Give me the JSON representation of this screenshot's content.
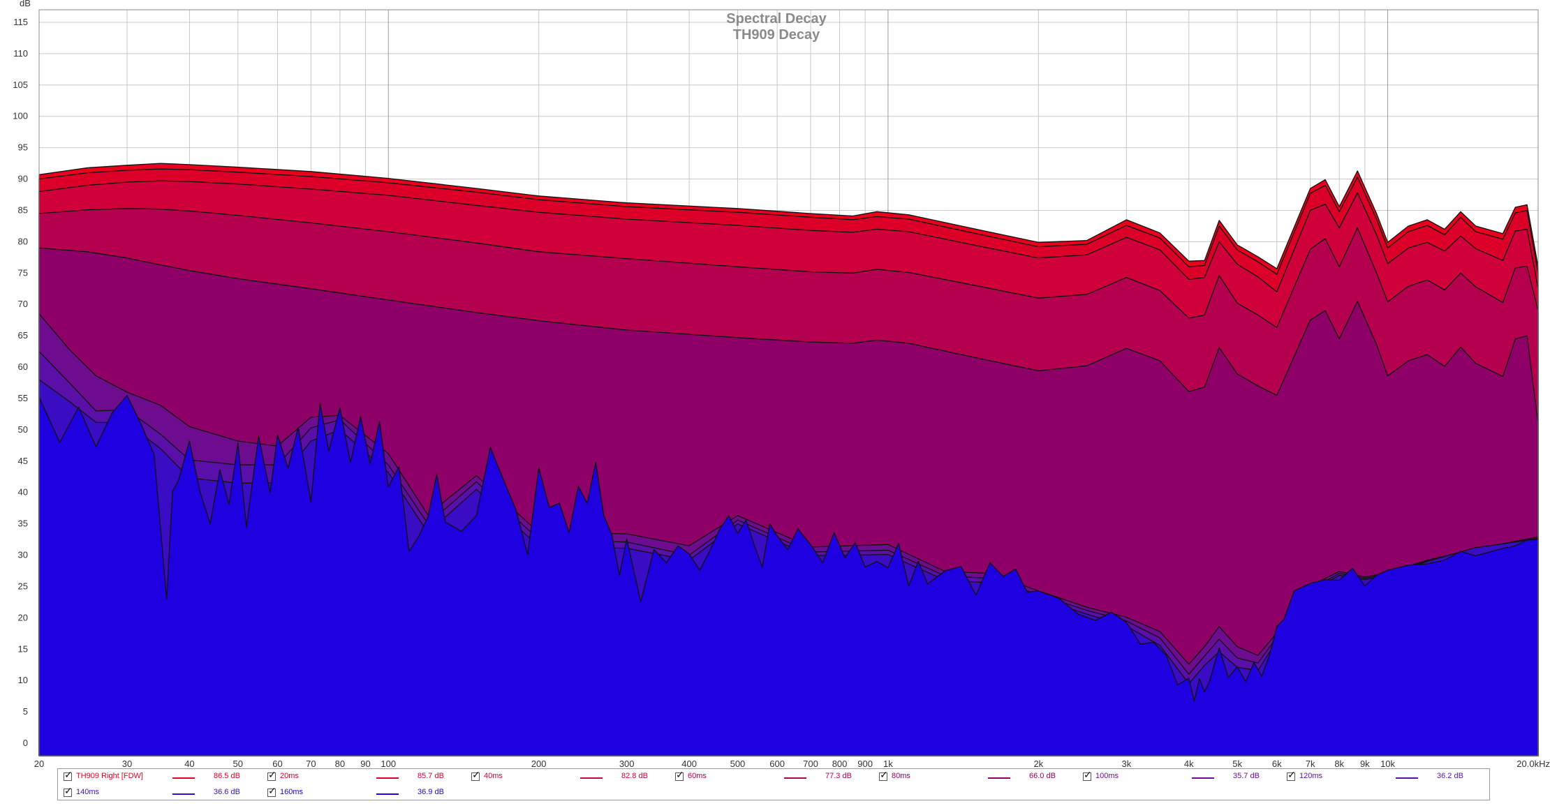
{
  "chart_data": {
    "type": "area",
    "title": "Spectral Decay",
    "subtitle": "TH909 Decay",
    "ylabel": "dB",
    "xlabel": "",
    "x_scale": "log",
    "xlim": [
      20,
      20000
    ],
    "ylim": [
      -2,
      117
    ],
    "yticks": [
      0,
      5,
      10,
      15,
      20,
      25,
      30,
      35,
      40,
      45,
      50,
      55,
      60,
      65,
      70,
      75,
      80,
      85,
      90,
      95,
      100,
      105,
      110,
      115
    ],
    "xticks": [
      {
        "v": 20,
        "label": "20"
      },
      {
        "v": 30,
        "label": "30"
      },
      {
        "v": 40,
        "label": "40"
      },
      {
        "v": 50,
        "label": "50"
      },
      {
        "v": 60,
        "label": "60"
      },
      {
        "v": 70,
        "label": "70"
      },
      {
        "v": 80,
        "label": "80"
      },
      {
        "v": 90,
        "label": "90"
      },
      {
        "v": 100,
        "label": "100"
      },
      {
        "v": 200,
        "label": "200"
      },
      {
        "v": 300,
        "label": "300"
      },
      {
        "v": 400,
        "label": "400"
      },
      {
        "v": 500,
        "label": "500"
      },
      {
        "v": 600,
        "label": "600"
      },
      {
        "v": 700,
        "label": "700"
      },
      {
        "v": 800,
        "label": "800"
      },
      {
        "v": 900,
        "label": "900"
      },
      {
        "v": 1000,
        "label": "1k"
      },
      {
        "v": 2000,
        "label": "2k"
      },
      {
        "v": 3000,
        "label": "3k"
      },
      {
        "v": 4000,
        "label": "4k"
      },
      {
        "v": 5000,
        "label": "5k"
      },
      {
        "v": 6000,
        "label": "6k"
      },
      {
        "v": 7000,
        "label": "7k"
      },
      {
        "v": 8000,
        "label": "8k"
      },
      {
        "v": 9000,
        "label": "9k"
      },
      {
        "v": 10000,
        "label": "10k"
      },
      {
        "v": 20000,
        "label": "20.0kHz"
      }
    ],
    "grid": true,
    "legend_position": "bottom",
    "series": [
      {
        "name": "TH909 Right [FDW]",
        "legend_value": "86.5 dB",
        "color": "#e8001c",
        "x": [
          20,
          25,
          30,
          35,
          40,
          50,
          70,
          100,
          150,
          200,
          300,
          500,
          700,
          850,
          950,
          1100,
          1500,
          2000,
          2500,
          3000,
          3500,
          4000,
          4300,
          4600,
          5000,
          5500,
          6000,
          7000,
          7500,
          8000,
          8700,
          9500,
          10000,
          11000,
          12000,
          13000,
          14000,
          15000,
          17000,
          18000,
          19000,
          20000
        ],
        "y": [
          90.7,
          91.8,
          92.2,
          92.5,
          92.3,
          91.9,
          91.2,
          90.1,
          88.5,
          87.3,
          86.2,
          85.3,
          84.5,
          84.1,
          84.8,
          84.3,
          82.0,
          79.9,
          80.2,
          83.5,
          81.4,
          76.9,
          77.0,
          83.4,
          79.5,
          77.6,
          75.7,
          88.5,
          89.9,
          85.6,
          91.3,
          84.5,
          79.9,
          82.5,
          83.5,
          82.0,
          84.8,
          82.5,
          81.3,
          85.5,
          85.9,
          76.0
        ]
      },
      {
        "name": "20ms",
        "legend_value": "85.7 dB",
        "color": "#dc0028",
        "x": [
          20,
          25,
          30,
          35,
          40,
          50,
          70,
          100,
          150,
          200,
          300,
          500,
          700,
          850,
          950,
          1100,
          1500,
          2000,
          2500,
          3000,
          3500,
          4000,
          4300,
          4600,
          5000,
          5500,
          6000,
          7000,
          7500,
          8000,
          8700,
          9500,
          10000,
          11000,
          12000,
          13000,
          14000,
          15000,
          17000,
          18000,
          19000,
          20000
        ],
        "y": [
          90.0,
          91.0,
          91.4,
          91.6,
          91.5,
          91.1,
          90.4,
          89.4,
          87.9,
          86.7,
          85.6,
          84.7,
          83.9,
          83.5,
          84.0,
          83.6,
          81.3,
          79.2,
          79.6,
          82.6,
          80.6,
          76.0,
          76.2,
          82.5,
          78.7,
          76.8,
          74.8,
          87.7,
          89.0,
          84.8,
          90.3,
          83.6,
          79.0,
          81.6,
          82.6,
          81.1,
          83.9,
          81.6,
          80.4,
          84.6,
          85.0,
          75.0
        ]
      },
      {
        "name": "40ms",
        "legend_value": "82.8 dB",
        "color": "#d0003a",
        "x": [
          20,
          25,
          30,
          35,
          40,
          50,
          70,
          100,
          150,
          200,
          300,
          500,
          700,
          850,
          950,
          1100,
          1500,
          2000,
          2500,
          3000,
          3500,
          4000,
          4300,
          4600,
          5000,
          5500,
          6000,
          7000,
          7500,
          8000,
          8700,
          9500,
          10000,
          11000,
          12000,
          13000,
          14000,
          15000,
          17000,
          18000,
          19000,
          20000
        ],
        "y": [
          88.0,
          89.0,
          89.5,
          89.7,
          89.6,
          89.2,
          88.4,
          87.4,
          85.8,
          84.7,
          83.6,
          82.6,
          81.8,
          81.5,
          82.0,
          81.6,
          79.4,
          77.4,
          77.9,
          80.7,
          78.7,
          74.0,
          74.3,
          80.0,
          76.4,
          74.4,
          72.0,
          85.0,
          86.0,
          82.2,
          87.8,
          81.1,
          76.5,
          79.0,
          79.9,
          78.5,
          80.9,
          78.9,
          77.0,
          81.7,
          82.0,
          72.5
        ]
      },
      {
        "name": "60ms",
        "legend_value": "77.3 dB",
        "color": "#b4004e",
        "x": [
          20,
          25,
          30,
          35,
          40,
          50,
          70,
          100,
          150,
          200,
          300,
          500,
          700,
          850,
          950,
          1100,
          1500,
          2000,
          2500,
          3000,
          3500,
          4000,
          4300,
          4600,
          5000,
          5500,
          6000,
          7000,
          7500,
          8000,
          8700,
          9500,
          10000,
          11000,
          12000,
          13000,
          14000,
          15000,
          17000,
          18000,
          19000,
          20000
        ],
        "y": [
          84.5,
          85.1,
          85.3,
          85.2,
          84.9,
          84.2,
          83.0,
          81.6,
          79.8,
          78.4,
          77.3,
          76.0,
          75.2,
          75.0,
          75.6,
          75.1,
          73.0,
          71.0,
          71.6,
          74.3,
          72.2,
          67.8,
          68.3,
          74.6,
          70.2,
          68.3,
          66.3,
          78.8,
          80.5,
          76.0,
          82.2,
          75.0,
          70.4,
          72.9,
          73.9,
          72.3,
          75.0,
          72.8,
          70.3,
          75.8,
          76.1,
          69.0
        ]
      },
      {
        "name": "80ms",
        "legend_value": "66.0 dB",
        "color": "#8e0068",
        "x": [
          20,
          25,
          30,
          35,
          40,
          50,
          70,
          100,
          150,
          200,
          300,
          500,
          700,
          850,
          950,
          1100,
          1500,
          2000,
          2500,
          3000,
          3500,
          4000,
          4300,
          4600,
          5000,
          5500,
          6000,
          7000,
          7500,
          8000,
          8700,
          9500,
          10000,
          11000,
          12000,
          13000,
          14000,
          15000,
          17000,
          18000,
          19000,
          20000
        ],
        "y": [
          79.0,
          78.4,
          77.4,
          76.3,
          75.4,
          74.1,
          72.5,
          70.7,
          68.7,
          67.4,
          65.9,
          64.7,
          64.0,
          63.8,
          64.3,
          63.8,
          61.5,
          59.4,
          60.2,
          63.0,
          61.0,
          56.1,
          56.8,
          63.1,
          58.9,
          57.0,
          55.5,
          67.5,
          69.0,
          64.5,
          70.5,
          63.6,
          58.6,
          61.0,
          62.0,
          60.1,
          63.2,
          60.6,
          58.5,
          64.5,
          65.0,
          51.0
        ]
      },
      {
        "name": "100ms",
        "legend_value": "35.7 dB",
        "color": "#6e0c90",
        "x": [
          20,
          23,
          26,
          30,
          35,
          40,
          50,
          60,
          70,
          80,
          100,
          120,
          150,
          200,
          300,
          400,
          500,
          700,
          1000,
          1300,
          1600,
          2000,
          2500,
          3000,
          3500,
          4000,
          4300,
          4600,
          5000,
          5500,
          6000,
          7000,
          8000,
          9000,
          10000,
          12000,
          15000,
          20000
        ],
        "y": [
          68.5,
          62.8,
          58.6,
          56.0,
          53.9,
          50.5,
          48.2,
          47.4,
          52.0,
          52.3,
          46.2,
          36.4,
          42.7,
          33.6,
          33.4,
          31.5,
          36.3,
          31.3,
          31.7,
          27.4,
          27.1,
          24.3,
          21.7,
          20.1,
          17.8,
          12.6,
          15.4,
          18.6,
          15.4,
          14.0,
          17.6,
          25.1,
          27.4,
          26.5,
          27.2,
          29.2,
          31.0,
          32.9
        ]
      },
      {
        "name": "120ms",
        "legend_value": "36.2 dB",
        "color": "#5a10a8",
        "x": [
          20,
          23,
          26,
          30,
          35,
          40,
          50,
          60,
          70,
          80,
          100,
          120,
          150,
          200,
          300,
          400,
          500,
          700,
          1000,
          1300,
          1600,
          2000,
          2500,
          3000,
          3500,
          4000,
          4300,
          4600,
          5000,
          5500,
          6000,
          7000,
          8000,
          9000,
          10000,
          12000,
          15000,
          20000
        ],
        "y": [
          62.5,
          57.5,
          53.0,
          53.2,
          49.3,
          45.2,
          44.4,
          44.4,
          50.3,
          51.6,
          44.4,
          35.0,
          41.7,
          32.5,
          32.1,
          30.0,
          35.6,
          30.5,
          30.8,
          26.7,
          26.3,
          23.7,
          21.2,
          19.5,
          16.8,
          11.0,
          13.9,
          16.6,
          13.6,
          12.8,
          16.9,
          24.5,
          27.1,
          26.3,
          27.0,
          29.1,
          31.1,
          32.7
        ]
      },
      {
        "name": "140ms",
        "legend_value": "36.6 dB",
        "color": "#3a0cc4",
        "x": [
          20,
          23,
          26,
          30,
          35,
          40,
          50,
          60,
          70,
          80,
          100,
          120,
          150,
          200,
          300,
          400,
          500,
          700,
          1000,
          1300,
          1600,
          2000,
          2500,
          3000,
          3500,
          4000,
          4300,
          4600,
          5000,
          5500,
          6000,
          7000,
          8000,
          9000,
          10000,
          12000,
          15000,
          20000
        ],
        "y": [
          58.0,
          54.5,
          51.2,
          51.1,
          47.0,
          42.3,
          41.5,
          41.5,
          48.2,
          50.0,
          43.2,
          33.6,
          40.5,
          31.4,
          31.1,
          29.2,
          35.0,
          29.9,
          30.1,
          26.0,
          25.6,
          23.1,
          20.6,
          18.7,
          15.6,
          9.5,
          12.4,
          14.6,
          12.1,
          11.6,
          16.4,
          24.2,
          26.8,
          26.1,
          26.8,
          29.0,
          31.2,
          32.6
        ]
      },
      {
        "name": "160ms",
        "legend_value": "36.9 dB",
        "color": "#1e00e0",
        "x": [
          20,
          22,
          24,
          26,
          28,
          30,
          32,
          34,
          36,
          37,
          38,
          40,
          42,
          44,
          46,
          48,
          50,
          52,
          55,
          58,
          60,
          63,
          66,
          70,
          73,
          76,
          80,
          84,
          88,
          92,
          96,
          100,
          105,
          110,
          115,
          120,
          125,
          130,
          140,
          150,
          160,
          170,
          180,
          190,
          200,
          210,
          220,
          230,
          240,
          250,
          260,
          270,
          280,
          290,
          300,
          320,
          340,
          360,
          380,
          400,
          420,
          440,
          460,
          480,
          500,
          520,
          540,
          560,
          580,
          600,
          630,
          660,
          700,
          740,
          780,
          820,
          860,
          900,
          950,
          1000,
          1050,
          1100,
          1150,
          1200,
          1300,
          1400,
          1500,
          1600,
          1700,
          1800,
          1900,
          2000,
          2200,
          2400,
          2600,
          2800,
          3000,
          3200,
          3400,
          3600,
          3800,
          4000,
          4100,
          4200,
          4300,
          4400,
          4500,
          4600,
          4800,
          5000,
          5200,
          5400,
          5600,
          5800,
          6000,
          6200,
          6500,
          7000,
          7500,
          8000,
          8500,
          9000,
          9500,
          10000,
          11000,
          12000,
          13000,
          14000,
          15000,
          16000,
          17000,
          18000,
          19000,
          20000
        ],
        "y": [
          55.2,
          48.0,
          53.6,
          47.3,
          52.7,
          55.5,
          50.9,
          46.0,
          23.0,
          40.2,
          41.9,
          48.2,
          40.1,
          35.0,
          43.6,
          38.1,
          47.9,
          34.5,
          49.0,
          40.0,
          49.2,
          43.9,
          50.4,
          38.5,
          54.2,
          46.6,
          53.5,
          44.8,
          52.1,
          44.6,
          51.3,
          40.9,
          44.1,
          30.6,
          33.0,
          36.1,
          42.9,
          35.3,
          33.8,
          36.3,
          47.2,
          42.0,
          37.3,
          30.1,
          43.9,
          37.6,
          38.3,
          33.6,
          41.0,
          38.3,
          44.8,
          36.3,
          33.3,
          26.8,
          32.6,
          22.6,
          30.9,
          28.8,
          31.5,
          30.2,
          27.6,
          30.7,
          34.1,
          36.3,
          33.5,
          35.6,
          31.6,
          28.1,
          35.0,
          33.1,
          30.9,
          34.2,
          31.7,
          28.8,
          33.6,
          29.6,
          32.0,
          28.1,
          29.0,
          28.0,
          31.9,
          25.1,
          29.0,
          25.4,
          27.5,
          28.2,
          23.6,
          28.8,
          26.6,
          27.8,
          24.1,
          24.3,
          23.1,
          20.6,
          19.6,
          20.9,
          19.3,
          15.8,
          16.1,
          14.1,
          9.3,
          10.4,
          6.7,
          10.3,
          8.2,
          9.9,
          12.6,
          15.2,
          10.5,
          12.2,
          9.8,
          12.9,
          10.7,
          14.1,
          18.6,
          19.8,
          24.3,
          25.5,
          26.1,
          26.0,
          27.9,
          25.1,
          26.8,
          27.6,
          28.4,
          28.6,
          29.2,
          30.6,
          29.9,
          30.5,
          31.1,
          31.5,
          32.4,
          32.5
        ]
      }
    ]
  }
}
